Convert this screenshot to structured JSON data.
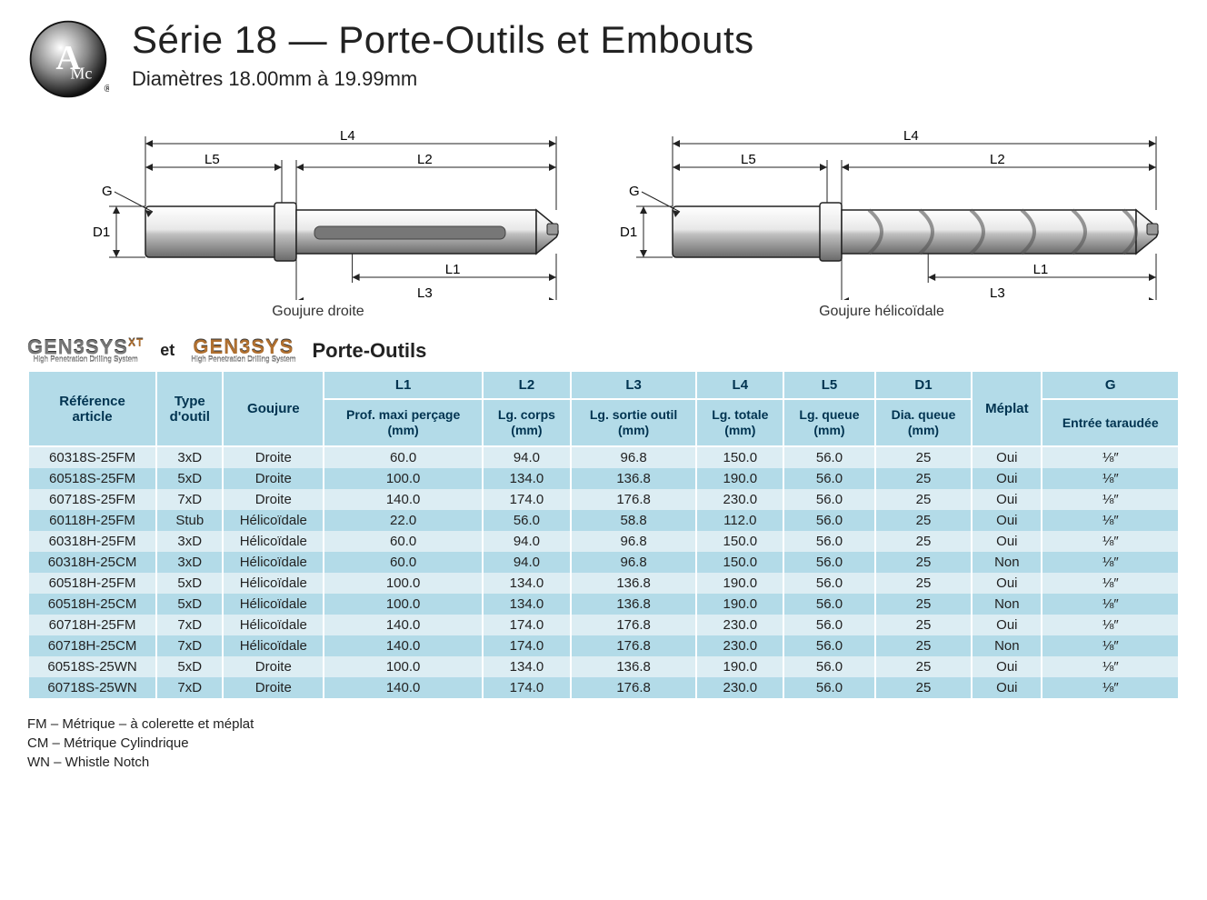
{
  "header": {
    "title": "Série 18 — Porte-Outils et Embouts",
    "subtitle": "Diamètres 18.00mm à 19.99mm"
  },
  "diagrams": {
    "left_caption": "Goujure droite",
    "right_caption": "Goujure hélicoïdale",
    "labels": {
      "G": "G",
      "D1": "D1",
      "L1": "L1",
      "L2": "L2",
      "L3": "L3",
      "L4": "L4",
      "L5": "L5"
    },
    "colors": {
      "tool_light": "#d8d8d8",
      "tool_dark": "#8a8a8a",
      "stroke": "#222",
      "dim_line": "#222",
      "bg": "#ffffff"
    }
  },
  "brandrow": {
    "brand1": "GEN3SYS",
    "brand1_sup": "XT",
    "brand_tag": "High Penetration Drilling System",
    "connector": "et",
    "brand2": "GEN3SYS",
    "label": "Porte-Outils"
  },
  "table": {
    "header_bg": "#b3dbe8",
    "row_alt1": "#dcedf3",
    "row_alt2": "#b3dbe8",
    "header_text": "#003350",
    "dim_codes": [
      "L1",
      "L2",
      "L3",
      "L4",
      "L5",
      "D1",
      "",
      "G"
    ],
    "columns": [
      "Référence article",
      "Type d'outil",
      "Goujure",
      "Prof. maxi perçage (mm)",
      "Lg. corps (mm)",
      "Lg. sortie outil (mm)",
      "Lg. totale (mm)",
      "Lg. queue (mm)",
      "Dia. queue (mm)",
      "Méplat",
      "Entrée taraudée"
    ],
    "rows": [
      [
        "60318S-25FM",
        "3xD",
        "Droite",
        "60.0",
        "94.0",
        "96.8",
        "150.0",
        "56.0",
        "25",
        "Oui",
        "⅛″"
      ],
      [
        "60518S-25FM",
        "5xD",
        "Droite",
        "100.0",
        "134.0",
        "136.8",
        "190.0",
        "56.0",
        "25",
        "Oui",
        "⅛″"
      ],
      [
        "60718S-25FM",
        "7xD",
        "Droite",
        "140.0",
        "174.0",
        "176.8",
        "230.0",
        "56.0",
        "25",
        "Oui",
        "⅛″"
      ],
      [
        "60118H-25FM",
        "Stub",
        "Hélicoïdale",
        "22.0",
        "56.0",
        "58.8",
        "112.0",
        "56.0",
        "25",
        "Oui",
        "⅛″"
      ],
      [
        "60318H-25FM",
        "3xD",
        "Hélicoïdale",
        "60.0",
        "94.0",
        "96.8",
        "150.0",
        "56.0",
        "25",
        "Oui",
        "⅛″"
      ],
      [
        "60318H-25CM",
        "3xD",
        "Hélicoïdale",
        "60.0",
        "94.0",
        "96.8",
        "150.0",
        "56.0",
        "25",
        "Non",
        "⅛″"
      ],
      [
        "60518H-25FM",
        "5xD",
        "Hélicoïdale",
        "100.0",
        "134.0",
        "136.8",
        "190.0",
        "56.0",
        "25",
        "Oui",
        "⅛″"
      ],
      [
        "60518H-25CM",
        "5xD",
        "Hélicoïdale",
        "100.0",
        "134.0",
        "136.8",
        "190.0",
        "56.0",
        "25",
        "Non",
        "⅛″"
      ],
      [
        "60718H-25FM",
        "7xD",
        "Hélicoïdale",
        "140.0",
        "174.0",
        "176.8",
        "230.0",
        "56.0",
        "25",
        "Oui",
        "⅛″"
      ],
      [
        "60718H-25CM",
        "7xD",
        "Hélicoïdale",
        "140.0",
        "174.0",
        "176.8",
        "230.0",
        "56.0",
        "25",
        "Non",
        "⅛″"
      ],
      [
        "60518S-25WN",
        "5xD",
        "Droite",
        "100.0",
        "134.0",
        "136.8",
        "190.0",
        "56.0",
        "25",
        "Oui",
        "⅛″"
      ],
      [
        "60718S-25WN",
        "7xD",
        "Droite",
        "140.0",
        "174.0",
        "176.8",
        "230.0",
        "56.0",
        "25",
        "Oui",
        "⅛″"
      ]
    ]
  },
  "footnotes": [
    "FM – Métrique – à colerette et méplat",
    "CM – Métrique Cylindrique",
    "WN – Whistle Notch"
  ]
}
